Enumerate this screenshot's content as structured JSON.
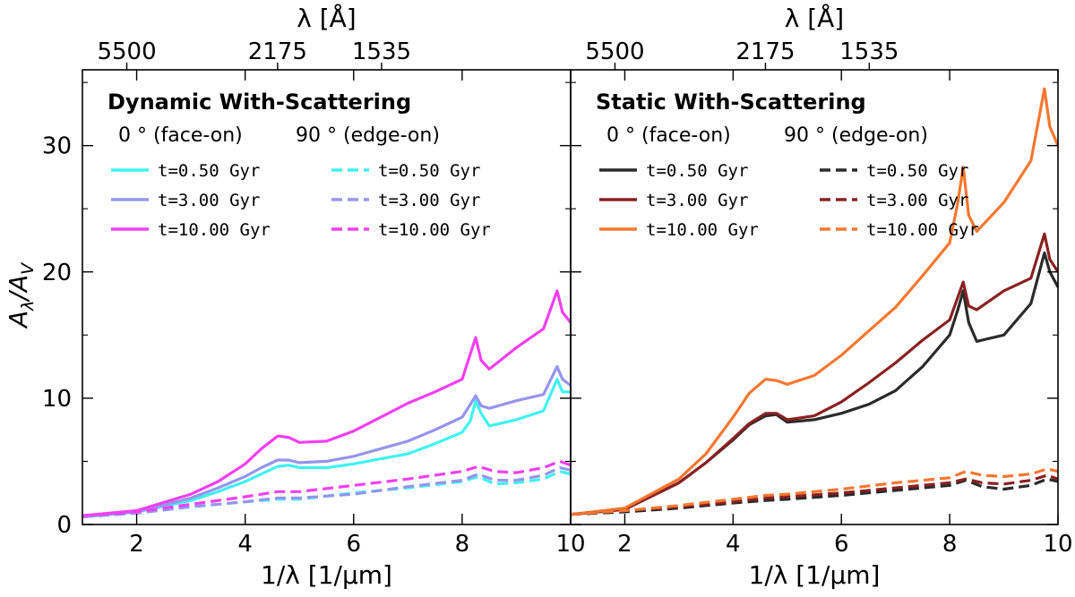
{
  "chart_data": {
    "type": "line",
    "ylabel_main": "A",
    "ylabel_sub1": "λ",
    "ylabel_slash": "/A",
    "ylabel_sub2": "V",
    "xlim": [
      1,
      10
    ],
    "ylim": [
      0,
      36
    ],
    "x_ticks": [
      2,
      4,
      6,
      8,
      10
    ],
    "y_ticks": [
      0,
      10,
      20,
      30
    ],
    "top_ticks": [
      {
        "value": 1.8182,
        "label": "5500"
      },
      {
        "value": 4.5977,
        "label": "2175"
      },
      {
        "value": 6.5147,
        "label": "1535"
      }
    ],
    "panels": [
      {
        "id": "dynamic",
        "title": "Dynamic With-Scattering",
        "xlabel": "1/λ [1/μm]",
        "top_xlabel": "λ [Å]",
        "col_face": "0 °  (face-on)",
        "col_edge": "90 °  (edge-on)",
        "series": [
          {
            "name": "t=0.50 Gyr",
            "color": "#3ff2f2",
            "dash": false,
            "x": [
              1,
              2,
              3,
              3.5,
              4,
              4.3,
              4.6,
              4.8,
              5,
              5.5,
              6,
              6.5,
              7,
              7.5,
              8,
              8.15,
              8.25,
              8.35,
              8.5,
              9,
              9.5,
              9.75,
              9.85,
              10
            ],
            "y": [
              0.6,
              1.0,
              1.9,
              2.6,
              3.4,
              4.0,
              4.6,
              4.7,
              4.5,
              4.5,
              4.8,
              5.2,
              5.6,
              6.4,
              7.3,
              8.2,
              9.8,
              8.8,
              7.8,
              8.3,
              9.0,
              11.5,
              10.5,
              10.5
            ]
          },
          {
            "name": "t=3.00 Gyr",
            "color": "#9595ec",
            "dash": false,
            "x": [
              1,
              2,
              3,
              3.5,
              4,
              4.3,
              4.6,
              4.8,
              5,
              5.5,
              6,
              6.5,
              7,
              7.5,
              8,
              8.15,
              8.25,
              8.35,
              8.5,
              9,
              9.5,
              9.75,
              9.85,
              10
            ],
            "y": [
              0.6,
              1.0,
              2.1,
              2.9,
              3.8,
              4.5,
              5.1,
              5.1,
              4.9,
              5.0,
              5.4,
              6.0,
              6.6,
              7.5,
              8.5,
              9.5,
              10.2,
              9.4,
              9.2,
              9.8,
              10.3,
              12.5,
              11.5,
              11.0
            ]
          },
          {
            "name": "t=10.00 Gyr",
            "color": "#f23ff2",
            "dash": false,
            "x": [
              1,
              2,
              3,
              3.5,
              4,
              4.3,
              4.6,
              4.8,
              5,
              5.5,
              6,
              6.5,
              7,
              7.5,
              8,
              8.15,
              8.25,
              8.35,
              8.5,
              9,
              9.5,
              9.75,
              9.85,
              10
            ],
            "y": [
              0.7,
              1.1,
              2.4,
              3.4,
              4.8,
              6.0,
              7.0,
              6.9,
              6.5,
              6.6,
              7.4,
              8.5,
              9.6,
              10.5,
              11.5,
              13.5,
              14.8,
              13.0,
              12.3,
              14.0,
              15.5,
              18.5,
              16.8,
              16.0
            ]
          },
          {
            "name": "t=0.50 Gyr",
            "color": "#3ff2f2",
            "dash": true,
            "x": [
              1,
              2,
              3,
              4,
              4.6,
              5,
              6,
              7,
              8,
              8.3,
              8.6,
              9,
              9.5,
              9.8,
              10
            ],
            "y": [
              0.6,
              0.9,
              1.4,
              1.8,
              2.0,
              2.0,
              2.5,
              2.9,
              3.4,
              3.8,
              3.2,
              3.3,
              3.6,
              4.2,
              4.0
            ]
          },
          {
            "name": "t=3.00 Gyr",
            "color": "#9595ec",
            "dash": true,
            "x": [
              1,
              2,
              3,
              4,
              4.6,
              5,
              6,
              7,
              8,
              8.3,
              8.6,
              9,
              9.5,
              9.8,
              10
            ],
            "y": [
              0.6,
              0.9,
              1.4,
              1.8,
              2.1,
              2.1,
              2.4,
              3.0,
              3.5,
              4.0,
              3.5,
              3.5,
              3.9,
              4.5,
              4.3
            ]
          },
          {
            "name": "t=10.00 Gyr",
            "color": "#f23ff2",
            "dash": true,
            "x": [
              1,
              2,
              3,
              4,
              4.6,
              5,
              6,
              7,
              8,
              8.3,
              8.6,
              9,
              9.5,
              9.8,
              10
            ],
            "y": [
              0.7,
              1.0,
              1.6,
              2.2,
              2.6,
              2.6,
              3.1,
              3.6,
              4.2,
              4.6,
              4.2,
              4.1,
              4.5,
              5.0,
              4.7
            ]
          }
        ]
      },
      {
        "id": "static",
        "title": "Static With-Scattering",
        "xlabel": "1/λ [1/μm]",
        "top_xlabel": "λ [Å]",
        "col_face": "0 °  (face-on)",
        "col_edge": "90 °  (edge-on)",
        "series": [
          {
            "name": "t=0.50 Gyr",
            "color": "#2b2b2b",
            "dash": false,
            "x": [
              1,
              2,
              3,
              3.5,
              4,
              4.3,
              4.6,
              4.8,
              5,
              5.5,
              6,
              6.5,
              7,
              7.5,
              8,
              8.15,
              8.25,
              8.35,
              8.5,
              9,
              9.5,
              9.75,
              9.85,
              10
            ],
            "y": [
              0.8,
              1.2,
              3.3,
              4.9,
              6.7,
              7.9,
              8.6,
              8.7,
              8.1,
              8.3,
              8.8,
              9.5,
              10.6,
              12.5,
              15.0,
              17.0,
              18.5,
              16.0,
              14.5,
              15.0,
              17.5,
              21.5,
              20.0,
              18.8
            ]
          },
          {
            "name": "t=3.00 Gyr",
            "color": "#8a2121",
            "dash": false,
            "x": [
              1,
              2,
              3,
              3.5,
              4,
              4.3,
              4.6,
              4.8,
              5,
              5.5,
              6,
              6.5,
              7,
              7.5,
              8,
              8.15,
              8.25,
              8.35,
              8.5,
              9,
              9.5,
              9.75,
              9.85,
              10
            ],
            "y": [
              0.8,
              1.2,
              3.3,
              4.9,
              6.8,
              8.0,
              8.8,
              8.8,
              8.3,
              8.6,
              9.7,
              11.2,
              12.8,
              14.6,
              16.2,
              18.0,
              19.2,
              17.3,
              17.0,
              18.5,
              19.5,
              23.0,
              21.0,
              20.0
            ]
          },
          {
            "name": "t=10.00 Gyr",
            "color": "#f5772f",
            "dash": false,
            "x": [
              1,
              2,
              3,
              3.5,
              4,
              4.3,
              4.6,
              4.8,
              5,
              5.5,
              6,
              6.5,
              7,
              7.5,
              8,
              8.15,
              8.25,
              8.35,
              8.5,
              9,
              9.5,
              9.75,
              9.85,
              10
            ],
            "y": [
              0.8,
              1.3,
              3.6,
              5.6,
              8.5,
              10.4,
              11.5,
              11.4,
              11.1,
              11.8,
              13.4,
              15.3,
              17.2,
              19.7,
              22.3,
              25.5,
              28.3,
              24.5,
              23.2,
              25.5,
              28.8,
              34.5,
              31.5,
              30.0
            ]
          },
          {
            "name": "t=0.50 Gyr",
            "color": "#2b2b2b",
            "dash": true,
            "x": [
              1,
              2,
              3,
              4,
              4.6,
              5,
              6,
              7,
              8,
              8.3,
              8.6,
              9,
              9.5,
              9.8,
              10
            ],
            "y": [
              0.8,
              1.0,
              1.3,
              1.7,
              1.9,
              2.0,
              2.3,
              2.7,
              3.1,
              3.5,
              3.0,
              2.8,
              3.1,
              3.6,
              3.4
            ]
          },
          {
            "name": "t=3.00 Gyr",
            "color": "#8a2121",
            "dash": true,
            "x": [
              1,
              2,
              3,
              4,
              4.6,
              5,
              6,
              7,
              8,
              8.3,
              8.6,
              9,
              9.5,
              9.8,
              10
            ],
            "y": [
              0.8,
              1.1,
              1.4,
              1.8,
              2.1,
              2.2,
              2.5,
              2.9,
              3.3,
              3.6,
              3.3,
              3.2,
              3.5,
              3.9,
              3.6
            ]
          },
          {
            "name": "t=10.00 Gyr",
            "color": "#f5772f",
            "dash": true,
            "x": [
              1,
              2,
              3,
              4,
              4.6,
              5,
              6,
              7,
              8,
              8.3,
              8.6,
              9,
              9.5,
              9.8,
              10
            ],
            "y": [
              0.8,
              1.1,
              1.5,
              2.0,
              2.3,
              2.4,
              2.8,
              3.3,
              3.7,
              4.2,
              3.9,
              3.8,
              4.0,
              4.4,
              4.2
            ]
          }
        ]
      }
    ]
  }
}
